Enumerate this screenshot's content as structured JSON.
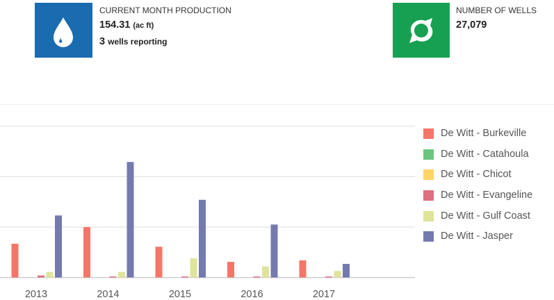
{
  "cards": [
    {
      "icon": "water-drop-icon",
      "color": "#1a6bb0",
      "label": "CURRENT MONTH PRODUCTION",
      "value": "154.31",
      "unit": "(ac ft)",
      "sub_value": "3",
      "sub_label": "wells reporting"
    },
    {
      "icon": "well-swirl-icon",
      "color": "#18a052",
      "label": "NUMBER OF WELLS",
      "value": "27,079"
    }
  ],
  "chart_data": {
    "type": "bar",
    "categories": [
      "2013",
      "2014",
      "2015",
      "2016",
      "2017"
    ],
    "ylim": [
      0,
      3
    ],
    "grid": true,
    "legend_position": "right",
    "series": [
      {
        "name": "De Witt - Burkeville",
        "color": "#f4766a",
        "values": [
          0.67,
          1.0,
          0.61,
          0.31,
          0.34
        ]
      },
      {
        "name": "De Witt - Catahoula",
        "color": "#6cc47f",
        "values": [
          0,
          0,
          0,
          0,
          0
        ]
      },
      {
        "name": "De Witt - Chicot",
        "color": "#fdd466",
        "values": [
          0,
          0,
          0,
          0,
          0
        ]
      },
      {
        "name": "De Witt - Evangeline",
        "color": "#dd6f80",
        "values": [
          0.04,
          0.02,
          0.02,
          0.02,
          0.02
        ]
      },
      {
        "name": "De Witt - Gulf Coast",
        "color": "#dfe49a",
        "values": [
          0.11,
          0.11,
          0.38,
          0.22,
          0.13
        ]
      },
      {
        "name": "De Witt - Jasper",
        "color": "#747aae",
        "values": [
          1.23,
          2.29,
          1.54,
          1.05,
          0.27
        ]
      }
    ]
  }
}
